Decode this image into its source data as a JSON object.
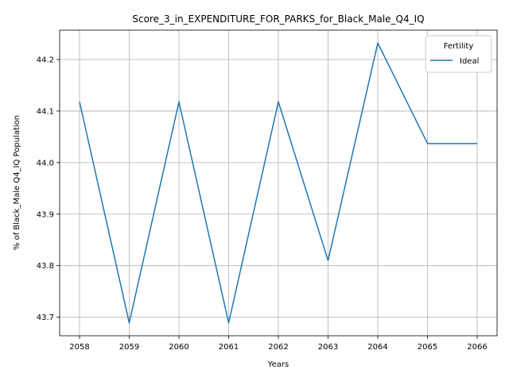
{
  "chart_data": {
    "type": "line",
    "title": "Score_3_in_EXPENDITURE_FOR_PARKS_for_Black_Male_Q4_IQ",
    "xlabel": "Years",
    "ylabel": "% of Black_Male Q4_IQ Population",
    "x": [
      2058,
      2059,
      2060,
      2061,
      2062,
      2063,
      2064,
      2065,
      2066
    ],
    "xticks": [
      "2058",
      "2059",
      "2060",
      "2061",
      "2062",
      "2063",
      "2064",
      "2065",
      "2066"
    ],
    "yticks": [
      "43.7",
      "43.8",
      "43.9",
      "44.0",
      "44.1",
      "44.2"
    ],
    "ylim": [
      43.664,
      44.257
    ],
    "xlim": [
      2057.6,
      2066.4
    ],
    "grid": true,
    "legend": {
      "title": "Fertility",
      "placement": "upper right"
    },
    "series": [
      {
        "name": "Ideal",
        "color": "#1f77b4",
        "values": [
          44.118,
          43.689,
          44.118,
          43.689,
          44.118,
          43.81,
          44.232,
          44.037,
          44.037
        ]
      }
    ]
  }
}
